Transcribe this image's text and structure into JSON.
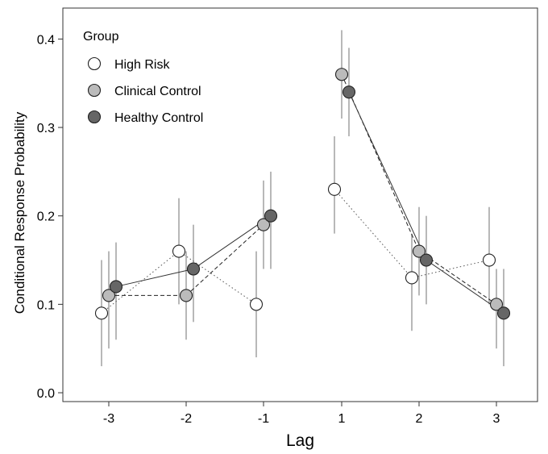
{
  "chart_data": {
    "type": "scatter",
    "xlabel": "Lag",
    "ylabel": "Conditional Response Probability",
    "categories": [
      "-3",
      "-2",
      "-1",
      "1",
      "2",
      "3"
    ],
    "ylim": [
      -0.01,
      0.435
    ],
    "yticks": [
      "0.0",
      "0.1",
      "0.2",
      "0.3",
      "0.4"
    ],
    "ytick_values": [
      0.0,
      0.1,
      0.2,
      0.3,
      0.4
    ],
    "grid": false,
    "legend": {
      "title": "Group",
      "position": "top-left"
    },
    "series": [
      {
        "name": "High Risk",
        "fill": "#ffffff",
        "line_style": "dotted",
        "line_color": "#555555",
        "values": [
          0.09,
          0.16,
          0.1,
          0.23,
          0.13,
          0.15
        ],
        "ci_low": [
          0.03,
          0.1,
          0.04,
          0.18,
          0.07,
          0.1
        ],
        "ci_high": [
          0.15,
          0.22,
          0.16,
          0.29,
          0.18,
          0.21
        ]
      },
      {
        "name": "Clinical Control",
        "fill": "#bbbbbb",
        "line_style": "dashed",
        "line_color": "#222222",
        "values": [
          0.11,
          0.11,
          0.19,
          0.36,
          0.16,
          0.1
        ],
        "ci_low": [
          0.05,
          0.06,
          0.14,
          0.31,
          0.11,
          0.05
        ],
        "ci_high": [
          0.16,
          0.16,
          0.24,
          0.41,
          0.21,
          0.14
        ]
      },
      {
        "name": "Healthy Control",
        "fill": "#666666",
        "line_style": "solid",
        "line_color": "#333333",
        "values": [
          0.12,
          0.14,
          0.2,
          0.34,
          0.15,
          0.09
        ],
        "ci_low": [
          0.06,
          0.08,
          0.14,
          0.29,
          0.1,
          0.03
        ],
        "ci_high": [
          0.17,
          0.19,
          0.25,
          0.39,
          0.2,
          0.14
        ]
      }
    ]
  }
}
